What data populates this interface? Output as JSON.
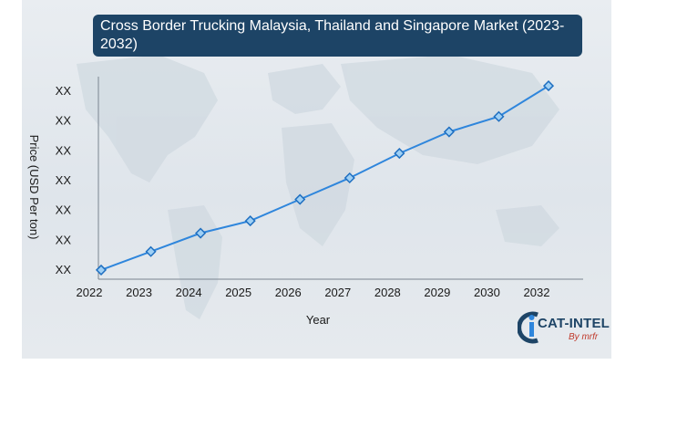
{
  "title": "Cross Border Trucking Malaysia, Thailand and Singapore Market (2023-2032)",
  "logo": {
    "main": "CAT-INTEL",
    "sub": "By mrfr"
  },
  "colors": {
    "line": "#2f86dc",
    "marker_fill": "#9fd0f5",
    "marker_stroke": "#1f6fc0",
    "title_bg": "#1d4466"
  },
  "chart_data": {
    "type": "line",
    "categories": [
      "2022",
      "2023",
      "2024",
      "2025",
      "2026",
      "2027",
      "2028",
      "2029",
      "2030",
      "2032"
    ],
    "values": [
      1.0,
      1.6,
      2.2,
      2.6,
      3.3,
      4.0,
      4.8,
      5.5,
      6.0,
      7.0
    ],
    "ytick_labels": [
      "XX",
      "XX",
      "XX",
      "XX",
      "XX",
      "XX",
      "XX"
    ],
    "xlabel": "Year",
    "ylabel": "Price (USD Per ton)",
    "ylim": [
      0.7,
      7.3
    ],
    "grid": false,
    "marker": "diamond"
  }
}
